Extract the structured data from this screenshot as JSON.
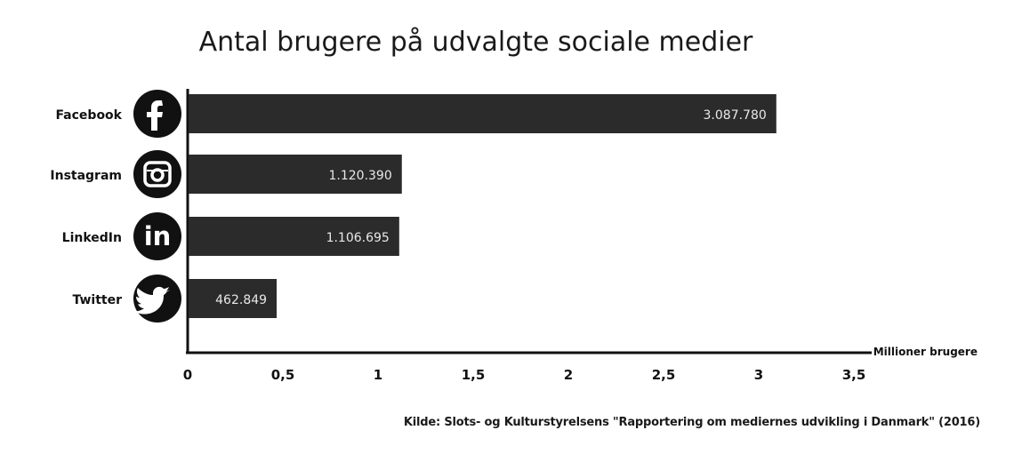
{
  "chart_data": {
    "type": "bar",
    "orientation": "horizontal",
    "title": "Antal brugere på udvalgte sociale medier",
    "xlabel": "Millioner brugere",
    "ylabel": "",
    "xlim": [
      0,
      3.5
    ],
    "x_ticks": [
      {
        "value": 0,
        "label": "0"
      },
      {
        "value": 0.5,
        "label": "0,5"
      },
      {
        "value": 1,
        "label": "1"
      },
      {
        "value": 1.5,
        "label": "1,5"
      },
      {
        "value": 2,
        "label": "2"
      },
      {
        "value": 2.5,
        "label": "2,5"
      },
      {
        "value": 3,
        "label": "3"
      },
      {
        "value": 3.5,
        "label": "3,5"
      }
    ],
    "grid": false,
    "categories": [
      "Facebook",
      "Instagram",
      "LinkedIn",
      "Twitter"
    ],
    "icons": [
      "facebook-icon",
      "instagram-icon",
      "linkedin-icon",
      "twitter-icon"
    ],
    "values": [
      3087780,
      1120390,
      1106695,
      462849
    ],
    "value_labels": [
      "3.087.780",
      "1.120.390",
      "1.106.695",
      "462.849"
    ],
    "bar_color": "#2b2b2b",
    "icon_color": "#111111",
    "source": "Kilde: Slots- og Kulturstyrelsens \"Rapportering om mediernes udvikling i Danmark\" (2016)"
  }
}
